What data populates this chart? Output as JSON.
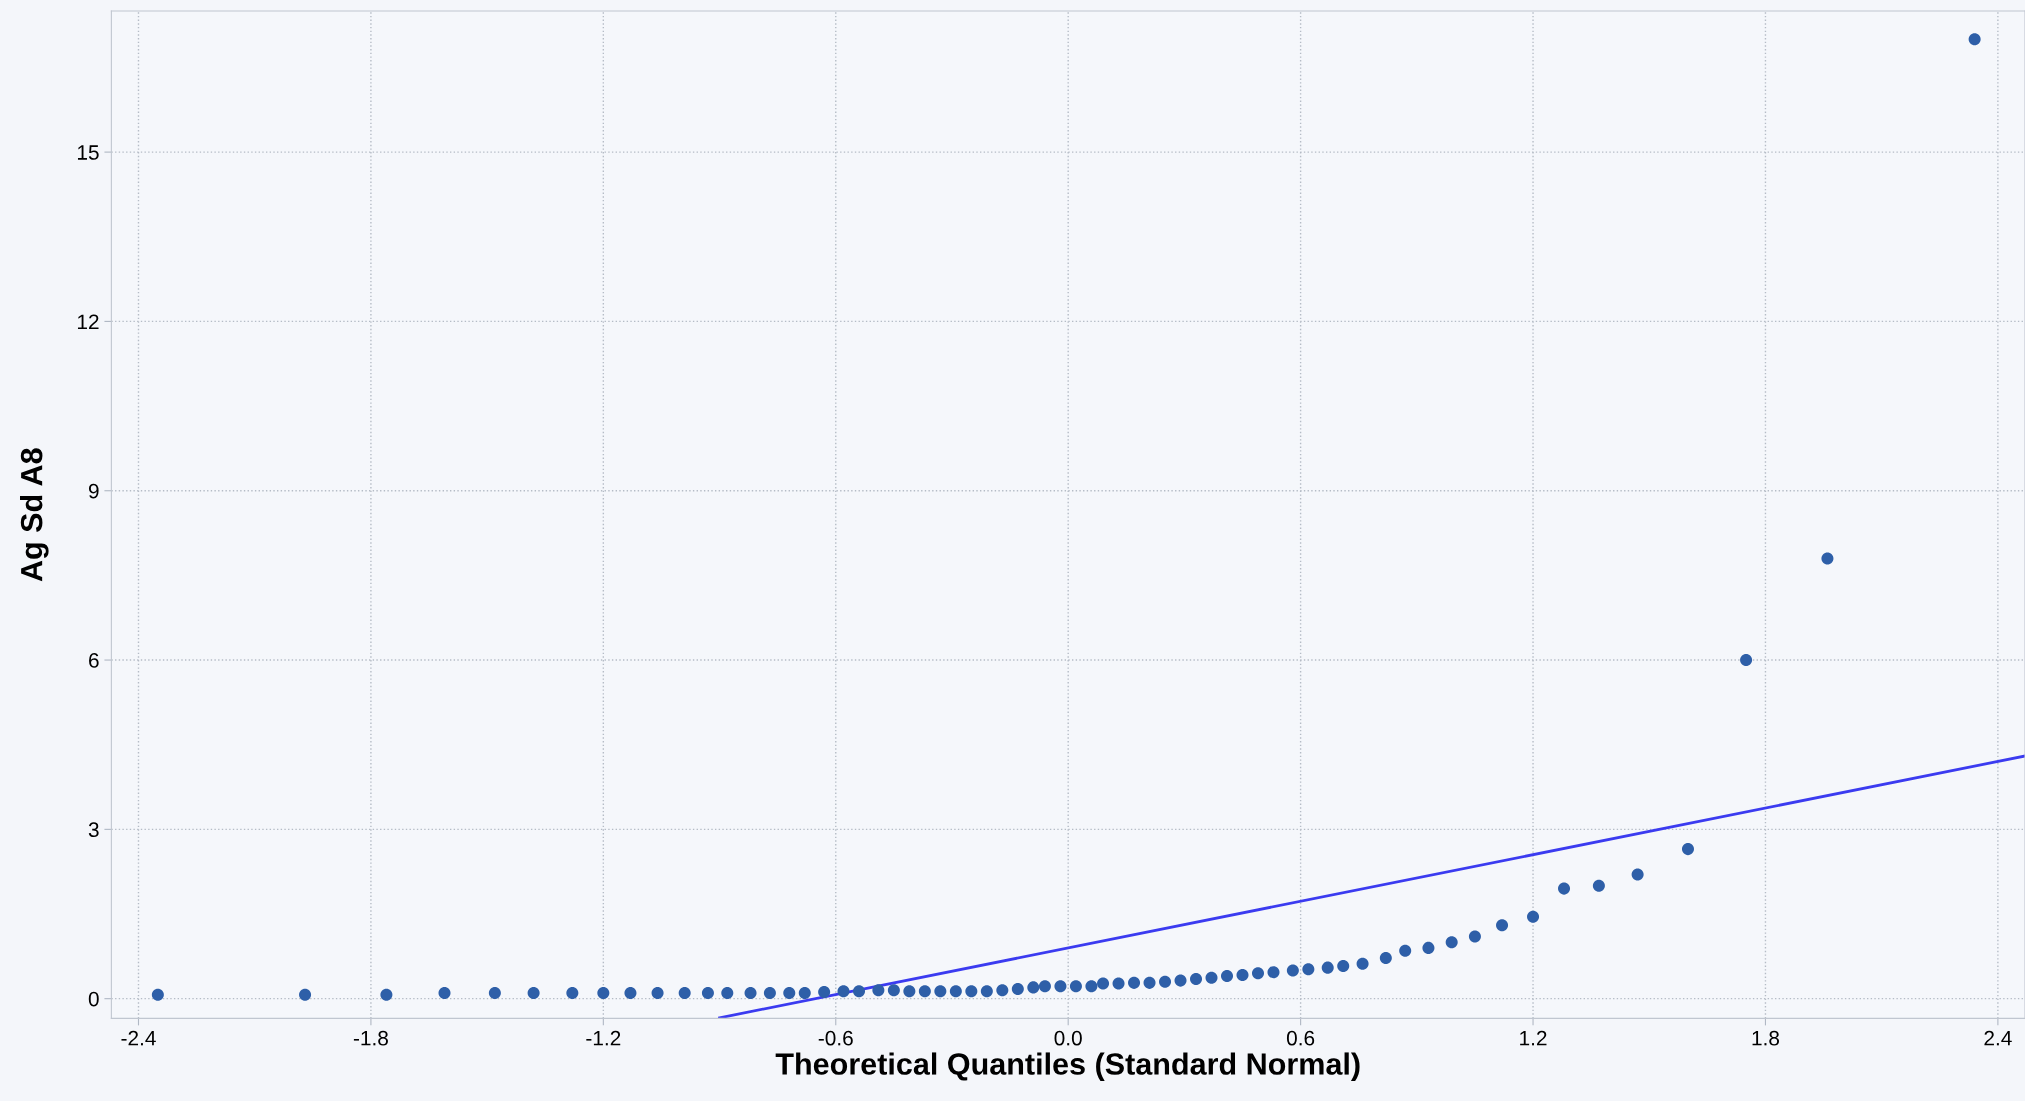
{
  "chart_data": {
    "type": "scatter",
    "xlabel": "Theoretical Quantiles (Standard Normal)",
    "ylabel": "Ag Sd A8",
    "xlim": [
      -2.47,
      2.47
    ],
    "ylim": [
      -0.35,
      17.5
    ],
    "xticks": [
      -2.4,
      -1.8,
      -1.2,
      -0.6,
      {
        "value": 0,
        "label": "0.0"
      },
      0.6,
      1.2,
      1.8,
      2.4
    ],
    "yticks": [
      0,
      3,
      6,
      9,
      12,
      15
    ],
    "grid": true,
    "marker": "circle",
    "series": [
      {
        "color": "#2e5fa8",
        "x": [
          -2.35,
          -1.97,
          -1.76,
          -1.61,
          -1.48,
          -1.38,
          -1.28,
          -1.2,
          -1.13,
          -1.06,
          -0.99,
          -0.93,
          -0.88,
          -0.82,
          -0.77,
          -0.72,
          -0.68,
          -0.63,
          -0.58,
          -0.54,
          -0.49,
          -0.45,
          -0.41,
          -0.37,
          -0.33,
          -0.29,
          -0.25,
          -0.21,
          -0.17,
          -0.13,
          -0.09,
          -0.06,
          -0.02,
          0.02,
          0.06,
          0.09,
          0.13,
          0.17,
          0.21,
          0.25,
          0.29,
          0.33,
          0.37,
          0.41,
          0.45,
          0.49,
          0.53,
          0.58,
          0.62,
          0.67,
          0.71,
          0.76,
          0.82,
          0.87,
          0.93,
          0.99,
          1.05,
          1.12,
          1.2,
          1.28,
          1.37,
          1.47,
          1.6,
          1.75,
          1.96,
          2.34
        ],
        "values": [
          0.07,
          0.07,
          0.07,
          0.1,
          0.1,
          0.1,
          0.1,
          0.1,
          0.1,
          0.1,
          0.1,
          0.1,
          0.1,
          0.1,
          0.1,
          0.1,
          0.1,
          0.12,
          0.13,
          0.13,
          0.15,
          0.15,
          0.13,
          0.13,
          0.13,
          0.13,
          0.13,
          0.13,
          0.15,
          0.17,
          0.2,
          0.22,
          0.22,
          0.22,
          0.22,
          0.27,
          0.27,
          0.28,
          0.28,
          0.3,
          0.32,
          0.35,
          0.37,
          0.4,
          0.42,
          0.45,
          0.47,
          0.5,
          0.52,
          0.55,
          0.58,
          0.62,
          0.72,
          0.85,
          0.9,
          1.0,
          1.1,
          1.3,
          1.45,
          1.95,
          2.0,
          2.2,
          2.65,
          6.0,
          7.8,
          17.0
        ]
      },
      {
        "type": "line",
        "color": "#3b3bf0",
        "marker": "none",
        "x": [
          -0.9,
          2.47
        ],
        "values": [
          -0.34,
          4.3
        ]
      }
    ]
  }
}
